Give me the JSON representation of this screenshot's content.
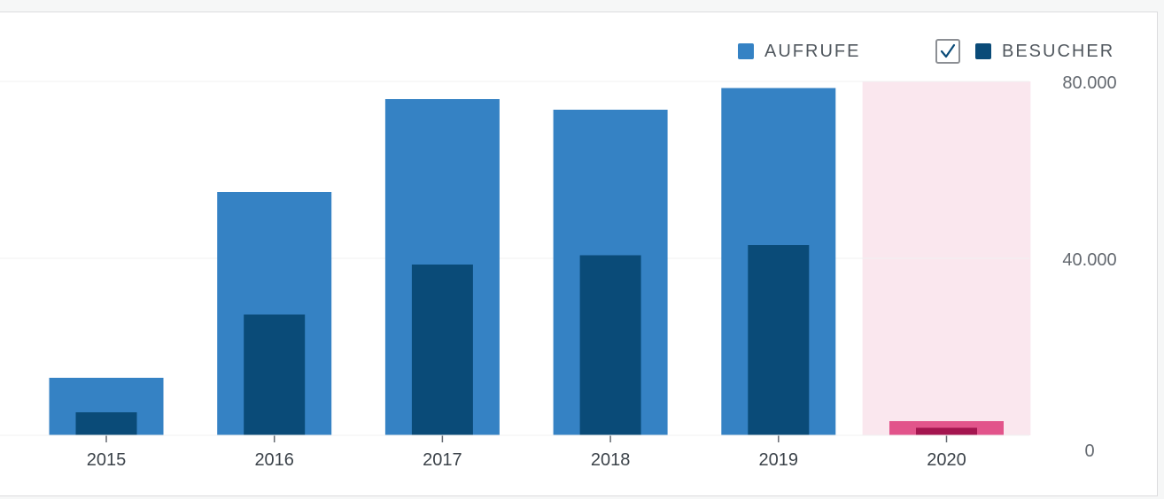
{
  "legend": {
    "views_label": "AUFRUFE",
    "visitors_label": "BESUCHER",
    "visitors_checked": true
  },
  "colors": {
    "views": "#3582c4",
    "visitors": "#0a4b78",
    "highlight_views": "#e2548b",
    "highlight_visitors": "#a4154f",
    "highlight_bg": "#fae7ee",
    "grid": "#f0f0f1"
  },
  "chart_data": {
    "type": "bar",
    "title": "",
    "xlabel": "",
    "ylabel": "",
    "categories": [
      "2015",
      "2016",
      "2017",
      "2018",
      "2019",
      "2020"
    ],
    "series": [
      {
        "name": "AUFRUFE",
        "values": [
          13000,
          55000,
          76000,
          73600,
          78500,
          3200
        ]
      },
      {
        "name": "BESUCHER",
        "values": [
          5200,
          27300,
          38600,
          40700,
          43000,
          1700
        ]
      }
    ],
    "ylim": [
      0,
      80000
    ],
    "yticks": [
      0,
      40000,
      80000
    ],
    "ytick_labels": [
      "0",
      "40.000",
      "80.000"
    ],
    "y_axis_position": "right",
    "grid": true,
    "legend_position": "top-right",
    "highlighted_category": "2020"
  }
}
